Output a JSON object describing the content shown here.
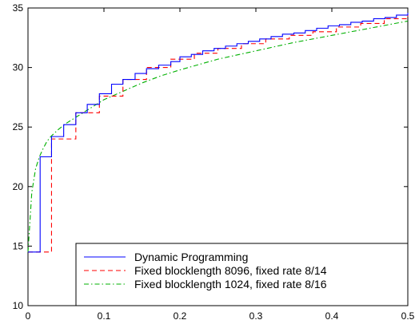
{
  "chart_data": {
    "type": "line",
    "title": "",
    "xlabel": "",
    "ylabel": "",
    "xlim": [
      0,
      0.5
    ],
    "ylim": [
      10,
      35
    ],
    "xticks": [
      0,
      0.1,
      0.2,
      0.3,
      0.4,
      0.5
    ],
    "xtick_labels": [
      "0",
      "0.1",
      "0.2",
      "0.3",
      "0.4",
      "0.5"
    ],
    "yticks": [
      10,
      15,
      20,
      25,
      30,
      35
    ],
    "ytick_labels": [
      "10",
      "15",
      "20",
      "25",
      "30",
      "35"
    ],
    "grid": false,
    "legend_position": "bottom-right",
    "series": [
      {
        "name": "Dynamic Programming",
        "color": "#0000ff",
        "dash": "solid",
        "step": true,
        "x": [
          0.0,
          0.016,
          0.031,
          0.047,
          0.063,
          0.078,
          0.094,
          0.11,
          0.125,
          0.141,
          0.156,
          0.172,
          0.188,
          0.2,
          0.215,
          0.23,
          0.245,
          0.26,
          0.275,
          0.29,
          0.305,
          0.32,
          0.335,
          0.35,
          0.365,
          0.38,
          0.395,
          0.41,
          0.425,
          0.44,
          0.455,
          0.47,
          0.485,
          0.5
        ],
        "y": [
          14.5,
          22.5,
          24.2,
          25.2,
          26.2,
          26.9,
          27.8,
          28.6,
          29.0,
          29.5,
          29.9,
          30.2,
          30.5,
          30.9,
          31.1,
          31.4,
          31.6,
          31.8,
          32.0,
          32.2,
          32.4,
          32.6,
          32.8,
          32.9,
          33.1,
          33.3,
          33.5,
          33.6,
          33.8,
          33.9,
          34.1,
          34.2,
          34.4,
          34.6
        ]
      },
      {
        "name": "Fixed blocklength 8096, fixed rate 8/14",
        "color": "#ff0000",
        "dash": "dashed",
        "step": true,
        "x": [
          0.0,
          0.031,
          0.063,
          0.094,
          0.125,
          0.156,
          0.188,
          0.219,
          0.25,
          0.281,
          0.313,
          0.344,
          0.375,
          0.406,
          0.438,
          0.469,
          0.5
        ],
        "y": [
          14.5,
          24.0,
          26.2,
          27.6,
          29.0,
          30.0,
          30.7,
          31.2,
          31.6,
          32.0,
          32.4,
          32.7,
          33.0,
          33.4,
          33.7,
          34.1,
          34.5
        ]
      },
      {
        "name": "Fixed blocklength 1024, fixed rate 8/16",
        "color": "#00b000",
        "dash": "dashdot",
        "step": false,
        "x": [
          0.0,
          0.005,
          0.01,
          0.015,
          0.02,
          0.025,
          0.03,
          0.04,
          0.05,
          0.06,
          0.07,
          0.08,
          0.1,
          0.125,
          0.15,
          0.175,
          0.2,
          0.25,
          0.3,
          0.35,
          0.4,
          0.45,
          0.5
        ],
        "y": [
          14.5,
          19.5,
          21.5,
          22.5,
          23.2,
          23.8,
          24.2,
          24.8,
          25.3,
          25.7,
          26.1,
          26.5,
          27.3,
          28.0,
          28.7,
          29.3,
          29.8,
          30.7,
          31.4,
          32.1,
          32.7,
          33.3,
          33.9
        ]
      }
    ]
  }
}
